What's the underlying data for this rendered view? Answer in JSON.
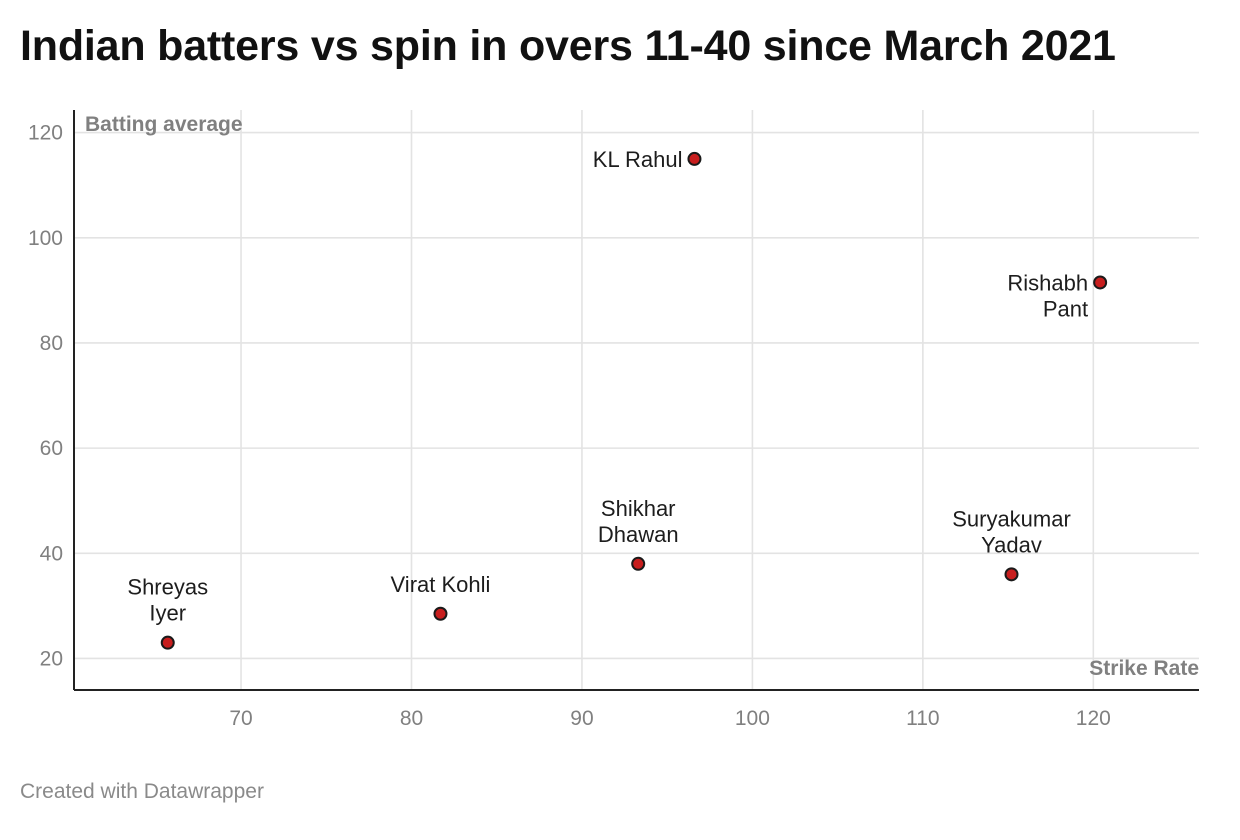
{
  "title": "Indian batters vs spin in overs 11-40 since March 2021",
  "footer": "Created with Datawrapper",
  "chart_data": {
    "type": "scatter",
    "title": "Indian batters vs spin in overs 11-40 since March 2021",
    "xlabel": "Strike Rate",
    "ylabel": "Batting average",
    "xlim": [
      60.2,
      126.2
    ],
    "ylim": [
      14,
      124.3
    ],
    "xticks": [
      70,
      80,
      90,
      100,
      110,
      120
    ],
    "yticks": [
      20,
      40,
      60,
      80,
      100,
      120
    ],
    "grid": true,
    "point_color": "#c81e1e",
    "points": [
      {
        "name": "Shreyas Iyer",
        "label_lines": [
          "Shreyas",
          "Iyer"
        ],
        "x": 65.7,
        "y": 23.0,
        "label_pos": "above"
      },
      {
        "name": "Virat Kohli",
        "label_lines": [
          "Virat Kohli"
        ],
        "x": 81.7,
        "y": 28.5,
        "label_pos": "above"
      },
      {
        "name": "Shikhar Dhawan",
        "label_lines": [
          "Shikhar",
          "Dhawan"
        ],
        "x": 93.3,
        "y": 38.0,
        "label_pos": "above"
      },
      {
        "name": "KL Rahul",
        "label_lines": [
          "KL Rahul"
        ],
        "x": 96.6,
        "y": 115.0,
        "label_pos": "left"
      },
      {
        "name": "Rishabh Pant",
        "label_lines": [
          "Rishabh",
          "Pant"
        ],
        "x": 120.4,
        "y": 91.5,
        "label_pos": "left"
      },
      {
        "name": "Suryakumar Yadav",
        "label_lines": [
          "Suryakumar",
          "Yadav"
        ],
        "x": 115.2,
        "y": 36.0,
        "label_pos": "above"
      }
    ]
  }
}
